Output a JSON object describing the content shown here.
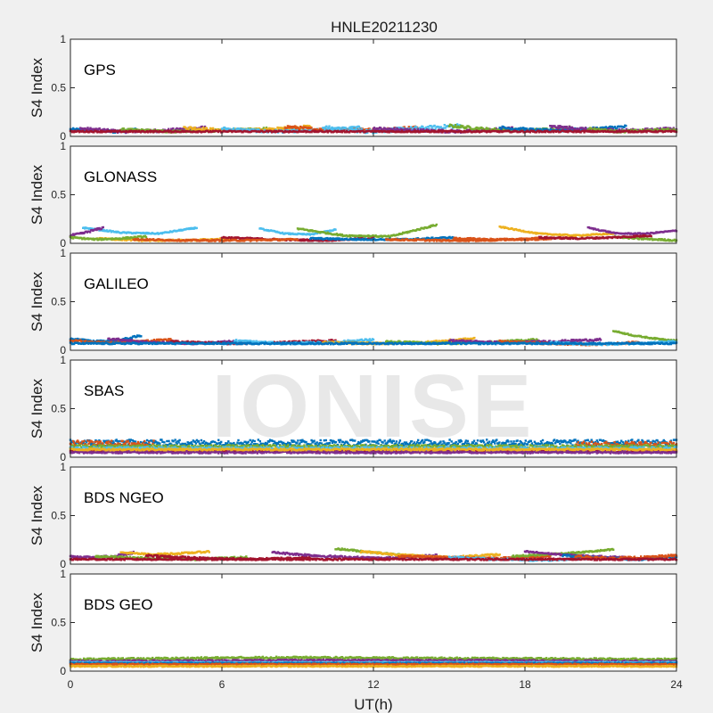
{
  "watermark": "IONISE",
  "chart_data": {
    "type": "scatter",
    "title": "HNLE20211230",
    "xlabel": "UT(h)",
    "ylabel": "S4 Index",
    "xlim": [
      0,
      24
    ],
    "ylim": [
      0,
      1
    ],
    "xticks": [
      0,
      6,
      12,
      18,
      24
    ],
    "yticks": [
      0,
      0.5,
      1
    ],
    "grid": false,
    "legend": "none",
    "series_colors": [
      "#0072BD",
      "#D95319",
      "#EDB120",
      "#7E2F8E",
      "#77AC30",
      "#4DBEEE",
      "#A2142F"
    ],
    "panels": [
      {
        "label": "GPS",
        "traces": [
          {
            "x0": 0.0,
            "x1": 2.6,
            "y": [
              0.07,
              0.06,
              0.05,
              0.07
            ],
            "ci": 0,
            "noise": 0.015
          },
          {
            "x0": 0.4,
            "x1": 5.4,
            "y": [
              0.08,
              0.05,
              0.06,
              0.09
            ],
            "ci": 3,
            "noise": 0.015
          },
          {
            "x0": 2.0,
            "x1": 7.8,
            "y": [
              0.07,
              0.05,
              0.06,
              0.08
            ],
            "ci": 4,
            "noise": 0.012
          },
          {
            "x0": 4.5,
            "x1": 9.5,
            "y": [
              0.09,
              0.06,
              0.07,
              0.1
            ],
            "ci": 2,
            "noise": 0.015
          },
          {
            "x0": 6.0,
            "x1": 11.5,
            "y": [
              0.08,
              0.05,
              0.06,
              0.09
            ],
            "ci": 5,
            "noise": 0.015
          },
          {
            "x0": 8.5,
            "x1": 13.8,
            "y": [
              0.1,
              0.06,
              0.07,
              0.09
            ],
            "ci": 1,
            "noise": 0.015
          },
          {
            "x0": 10.0,
            "x1": 15.5,
            "y": [
              0.09,
              0.05,
              0.08,
              0.11
            ],
            "ci": 5,
            "noise": 0.02
          },
          {
            "x0": 12.0,
            "x1": 17.5,
            "y": [
              0.08,
              0.06,
              0.05,
              0.08
            ],
            "ci": 3,
            "noise": 0.015
          },
          {
            "x0": 15.0,
            "x1": 19.8,
            "y": [
              0.11,
              0.07,
              0.06,
              0.09
            ],
            "ci": 4,
            "noise": 0.015
          },
          {
            "x0": 17.0,
            "x1": 22.0,
            "y": [
              0.09,
              0.06,
              0.07,
              0.1
            ],
            "ci": 0,
            "noise": 0.015
          },
          {
            "x0": 19.0,
            "x1": 24.0,
            "y": [
              0.1,
              0.07,
              0.06,
              0.08
            ],
            "ci": 3,
            "noise": 0.015
          },
          {
            "x0": 20.5,
            "x1": 24.0,
            "y": [
              0.08,
              0.05,
              0.06,
              0.07
            ],
            "ci": 4,
            "noise": 0.012
          },
          {
            "x0": 0.0,
            "x1": 24.0,
            "y": [
              0.05,
              0.05,
              0.05,
              0.05
            ],
            "ci": 6,
            "noise": 0.008
          }
        ]
      },
      {
        "label": "GLONASS",
        "traces": [
          {
            "x0": 0.5,
            "x1": 5.0,
            "y": [
              0.16,
              0.11,
              0.1,
              0.16
            ],
            "ci": 5,
            "noise": 0.006
          },
          {
            "x0": 0.0,
            "x1": 1.3,
            "y": [
              0.08,
              0.1,
              0.13,
              0.16
            ],
            "ci": 3,
            "noise": 0.01
          },
          {
            "x0": 1.0,
            "x1": 6.5,
            "y": [
              0.05,
              0.03,
              0.03,
              0.05
            ],
            "ci": 2,
            "noise": 0.008
          },
          {
            "x0": 0.0,
            "x1": 3.0,
            "y": [
              0.06,
              0.04,
              0.05,
              0.07
            ],
            "ci": 4,
            "noise": 0.008
          },
          {
            "x0": 7.5,
            "x1": 10.5,
            "y": [
              0.15,
              0.1,
              0.09,
              0.14
            ],
            "ci": 5,
            "noise": 0.006
          },
          {
            "x0": 9.0,
            "x1": 14.5,
            "y": [
              0.15,
              0.08,
              0.07,
              0.19
            ],
            "ci": 4,
            "noise": 0.008
          },
          {
            "x0": 6.0,
            "x1": 12.0,
            "y": [
              0.06,
              0.04,
              0.03,
              0.05
            ],
            "ci": 6,
            "noise": 0.008
          },
          {
            "x0": 9.5,
            "x1": 15.2,
            "y": [
              0.05,
              0.04,
              0.04,
              0.06
            ],
            "ci": 0,
            "noise": 0.008
          },
          {
            "x0": 15.2,
            "x1": 20.0,
            "y": [
              0.05,
              0.04,
              0.04,
              0.06
            ],
            "ci": 1,
            "noise": 0.008
          },
          {
            "x0": 17.0,
            "x1": 21.5,
            "y": [
              0.17,
              0.1,
              0.08,
              0.1
            ],
            "ci": 2,
            "noise": 0.006
          },
          {
            "x0": 20.5,
            "x1": 24.0,
            "y": [
              0.16,
              0.1,
              0.1,
              0.13
            ],
            "ci": 3,
            "noise": 0.006
          },
          {
            "x0": 21.5,
            "x1": 24.0,
            "y": [
              0.07,
              0.05,
              0.04,
              0.03
            ],
            "ci": 4,
            "noise": 0.008
          },
          {
            "x0": 18.5,
            "x1": 23.0,
            "y": [
              0.06,
              0.05,
              0.06,
              0.08
            ],
            "ci": 6,
            "noise": 0.008
          },
          {
            "x0": 2.5,
            "x1": 9.0,
            "y": [
              0.04,
              0.03,
              0.03,
              0.04
            ],
            "ci": 1,
            "noise": 0.008
          },
          {
            "x0": 12.5,
            "x1": 18.5,
            "y": [
              0.04,
              0.03,
              0.03,
              0.05
            ],
            "ci": 1,
            "noise": 0.008
          }
        ]
      },
      {
        "label": "GALILEO",
        "traces": [
          {
            "x0": 0.0,
            "x1": 2.8,
            "y": [
              0.12,
              0.09,
              0.1,
              0.15
            ],
            "ci": 0,
            "noise": 0.01
          },
          {
            "x0": 0.0,
            "x1": 4.0,
            "y": [
              0.1,
              0.08,
              0.09,
              0.11
            ],
            "ci": 1,
            "noise": 0.01
          },
          {
            "x0": 1.5,
            "x1": 6.5,
            "y": [
              0.12,
              0.08,
              0.07,
              0.09
            ],
            "ci": 3,
            "noise": 0.01
          },
          {
            "x0": 4.0,
            "x1": 10.5,
            "y": [
              0.09,
              0.07,
              0.08,
              0.1
            ],
            "ci": 6,
            "noise": 0.01
          },
          {
            "x0": 6.5,
            "x1": 12.0,
            "y": [
              0.1,
              0.07,
              0.08,
              0.11
            ],
            "ci": 5,
            "noise": 0.01
          },
          {
            "x0": 10.0,
            "x1": 16.0,
            "y": [
              0.08,
              0.07,
              0.08,
              0.12
            ],
            "ci": 2,
            "noise": 0.01
          },
          {
            "x0": 12.5,
            "x1": 18.5,
            "y": [
              0.09,
              0.07,
              0.08,
              0.11
            ],
            "ci": 4,
            "noise": 0.01
          },
          {
            "x0": 15.0,
            "x1": 21.0,
            "y": [
              0.1,
              0.08,
              0.09,
              0.11
            ],
            "ci": 3,
            "noise": 0.01
          },
          {
            "x0": 17.0,
            "x1": 22.5,
            "y": [
              0.09,
              0.07,
              0.06,
              0.08
            ],
            "ci": 1,
            "noise": 0.01
          },
          {
            "x0": 21.5,
            "x1": 24.0,
            "y": [
              0.2,
              0.15,
              0.12,
              0.1
            ],
            "ci": 4,
            "noise": 0.006
          },
          {
            "x0": 19.0,
            "x1": 24.0,
            "y": [
              0.08,
              0.06,
              0.07,
              0.09
            ],
            "ci": 5,
            "noise": 0.01
          },
          {
            "x0": 0.0,
            "x1": 24.0,
            "y": [
              0.07,
              0.07,
              0.07,
              0.07
            ],
            "ci": 0,
            "noise": 0.008
          }
        ]
      },
      {
        "label": "SBAS",
        "traces": [
          {
            "x0": 0.0,
            "x1": 24.0,
            "y": [
              0.15,
              0.15,
              0.15,
              0.15
            ],
            "ci": 0,
            "noise": 0.03
          },
          {
            "x0": 0.0,
            "x1": 3.3,
            "y": [
              0.14,
              0.14,
              0.14,
              0.14
            ],
            "ci": 1,
            "noise": 0.03
          },
          {
            "x0": 20.0,
            "x1": 24.0,
            "y": [
              0.13,
              0.13,
              0.13,
              0.13
            ],
            "ci": 1,
            "noise": 0.03
          },
          {
            "x0": 0.0,
            "x1": 24.0,
            "y": [
              0.11,
              0.11,
              0.11,
              0.11
            ],
            "ci": 4,
            "noise": 0.015
          },
          {
            "x0": 0.0,
            "x1": 24.0,
            "y": [
              0.09,
              0.09,
              0.09,
              0.09
            ],
            "ci": 5,
            "noise": 0.015
          },
          {
            "x0": 0.0,
            "x1": 24.0,
            "y": [
              0.06,
              0.06,
              0.06,
              0.06
            ],
            "ci": 6,
            "noise": 0.01
          },
          {
            "x0": 0.0,
            "x1": 24.0,
            "y": [
              0.05,
              0.05,
              0.05,
              0.05
            ],
            "ci": 3,
            "noise": 0.01
          },
          {
            "x0": 0.0,
            "x1": 24.0,
            "y": [
              0.08,
              0.08,
              0.08,
              0.08
            ],
            "ci": 2,
            "noise": 0.01
          }
        ]
      },
      {
        "label": "BDS NGEO",
        "traces": [
          {
            "x0": 0.0,
            "x1": 2.5,
            "y": [
              0.08,
              0.07,
              0.08,
              0.12
            ],
            "ci": 3,
            "noise": 0.01
          },
          {
            "x0": 2.0,
            "x1": 5.5,
            "y": [
              0.12,
              0.1,
              0.11,
              0.13
            ],
            "ci": 2,
            "noise": 0.008
          },
          {
            "x0": 1.0,
            "x1": 7.0,
            "y": [
              0.08,
              0.06,
              0.05,
              0.07
            ],
            "ci": 4,
            "noise": 0.01
          },
          {
            "x0": 3.0,
            "x1": 9.5,
            "y": [
              0.09,
              0.06,
              0.05,
              0.07
            ],
            "ci": 6,
            "noise": 0.01
          },
          {
            "x0": 8.0,
            "x1": 14.5,
            "y": [
              0.12,
              0.08,
              0.06,
              0.09
            ],
            "ci": 3,
            "noise": 0.01
          },
          {
            "x0": 10.5,
            "x1": 14.0,
            "y": [
              0.16,
              0.13,
              0.1,
              0.08
            ],
            "ci": 4,
            "noise": 0.008
          },
          {
            "x0": 11.5,
            "x1": 17.0,
            "y": [
              0.13,
              0.09,
              0.07,
              0.1
            ],
            "ci": 2,
            "noise": 0.01
          },
          {
            "x0": 13.0,
            "x1": 19.0,
            "y": [
              0.08,
              0.07,
              0.06,
              0.08
            ],
            "ci": 1,
            "noise": 0.01
          },
          {
            "x0": 15.0,
            "x1": 20.5,
            "y": [
              0.07,
              0.05,
              0.04,
              0.06
            ],
            "ci": 5,
            "noise": 0.01
          },
          {
            "x0": 17.5,
            "x1": 21.5,
            "y": [
              0.08,
              0.1,
              0.12,
              0.15
            ],
            "ci": 4,
            "noise": 0.008
          },
          {
            "x0": 18.0,
            "x1": 22.0,
            "y": [
              0.13,
              0.1,
              0.08,
              0.07
            ],
            "ci": 3,
            "noise": 0.008
          },
          {
            "x0": 19.5,
            "x1": 24.0,
            "y": [
              0.09,
              0.06,
              0.05,
              0.07
            ],
            "ci": 0,
            "noise": 0.01
          },
          {
            "x0": 20.0,
            "x1": 24.0,
            "y": [
              0.08,
              0.06,
              0.07,
              0.09
            ],
            "ci": 1,
            "noise": 0.01
          },
          {
            "x0": 0.0,
            "x1": 24.0,
            "y": [
              0.05,
              0.05,
              0.05,
              0.05
            ],
            "ci": 6,
            "noise": 0.008
          }
        ]
      },
      {
        "label": "BDS GEO",
        "traces": [
          {
            "x0": 0.0,
            "x1": 24.0,
            "y": [
              0.12,
              0.14,
              0.13,
              0.12
            ],
            "ci": 4,
            "noise": 0.01
          },
          {
            "x0": 0.0,
            "x1": 24.0,
            "y": [
              0.1,
              0.11,
              0.11,
              0.1
            ],
            "ci": 3,
            "noise": 0.008
          },
          {
            "x0": 0.0,
            "x1": 24.0,
            "y": [
              0.09,
              0.09,
              0.09,
              0.09
            ],
            "ci": 5,
            "noise": 0.006
          },
          {
            "x0": 0.0,
            "x1": 24.0,
            "y": [
              0.08,
              0.08,
              0.08,
              0.08
            ],
            "ci": 0,
            "noise": 0.006
          },
          {
            "x0": 0.0,
            "x1": 24.0,
            "y": [
              0.07,
              0.07,
              0.07,
              0.07
            ],
            "ci": 1,
            "noise": 0.006
          },
          {
            "x0": 0.0,
            "x1": 24.0,
            "y": [
              0.05,
              0.05,
              0.05,
              0.05
            ],
            "ci": 2,
            "noise": 0.006
          }
        ]
      }
    ]
  }
}
